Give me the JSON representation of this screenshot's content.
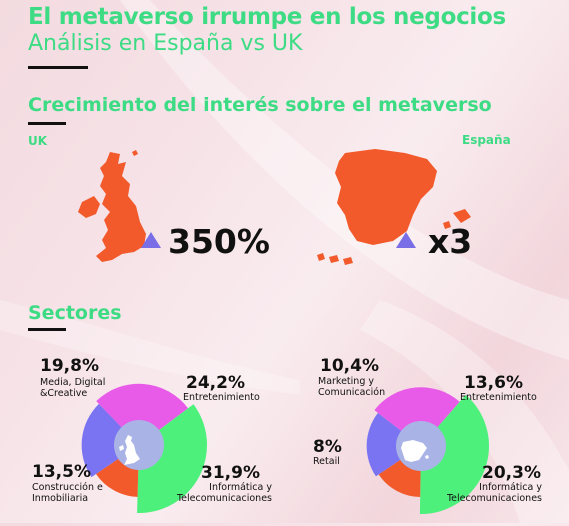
{
  "header": {
    "title": "El metaverso irrumpe en los negocios",
    "subtitle": "Análisis en España vs UK"
  },
  "growth": {
    "heading": "Crecimiento del interés sobre el metaverso",
    "uk": {
      "label": "UK",
      "value": "350%"
    },
    "spain": {
      "label": "España",
      "value": "x3"
    }
  },
  "sectors": {
    "heading": "Sectores"
  },
  "colors": {
    "accent_green": "#3ddc84",
    "map_orange": "#f2592b",
    "arrow_purple": "#7a6ee6",
    "seg_blue": "#7b74f2",
    "seg_magenta": "#e85ae8",
    "seg_green": "#4ef07c",
    "seg_orange": "#f2592b"
  },
  "chart_data": [
    {
      "type": "pie",
      "name": "UK",
      "slices": [
        {
          "label": "Media, Digital &Creative",
          "value": 19.8,
          "text": "19,8%",
          "color": "#7b74f2"
        },
        {
          "label": "Entretenimiento",
          "value": 24.2,
          "text": "24,2%",
          "color": "#e85ae8"
        },
        {
          "label": "Informática y Telecomunicaciones",
          "value": 31.9,
          "text": "31,9%",
          "color": "#4ef07c"
        },
        {
          "label": "Construcción e Inmobiliaria",
          "value": 13.5,
          "text": "13,5%",
          "color": "#f2592b"
        }
      ]
    },
    {
      "type": "pie",
      "name": "España",
      "slices": [
        {
          "label": "Marketing y Comunicación",
          "value": 10.4,
          "text": "10,4%",
          "color": "#7b74f2"
        },
        {
          "label": "Entretenimiento",
          "value": 13.6,
          "text": "13,6%",
          "color": "#e85ae8"
        },
        {
          "label": "Informática y Telecomunicaciones",
          "value": 20.3,
          "text": "20,3%",
          "color": "#4ef07c"
        },
        {
          "label": "Retail",
          "value": 8,
          "text": "8%",
          "color": "#f2592b"
        }
      ]
    }
  ]
}
